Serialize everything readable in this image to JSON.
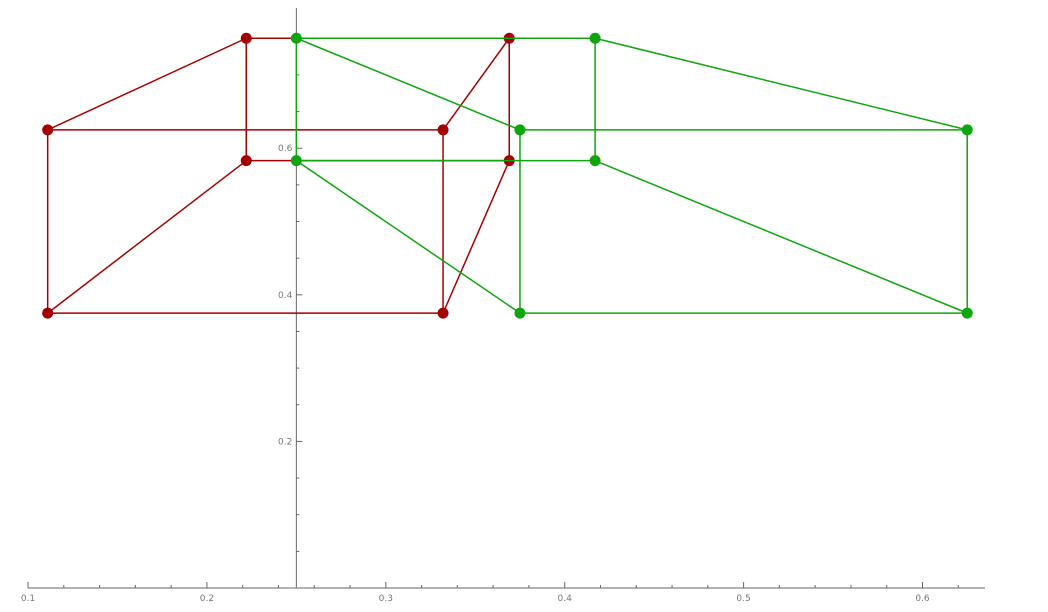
{
  "chart_data": {
    "type": "scatter",
    "title": "",
    "xlabel": "",
    "ylabel": "",
    "xlim": [
      0.1,
      0.635
    ],
    "ylim": [
      0,
      0.75
    ],
    "axes_origin": [
      0.25,
      0
    ],
    "x_ticks": [
      0.1,
      0.2,
      0.3,
      0.4,
      0.5,
      0.6
    ],
    "x_tick_labels": [
      "0.1",
      "0.2",
      "0.3",
      "0.4",
      "0.5",
      "0.6"
    ],
    "y_ticks": [
      0.2,
      0.4,
      0.6
    ],
    "y_tick_labels": [
      "0.2",
      "0.4",
      "0.6"
    ],
    "grid": false,
    "legend": "none",
    "series": [
      {
        "color": "#a50000",
        "points": [
          [
            0.111,
            0.625
          ],
          [
            0.332,
            0.625
          ],
          [
            0.332,
            0.375
          ],
          [
            0.111,
            0.375
          ],
          [
            0.222,
            0.75
          ],
          [
            0.369,
            0.75
          ],
          [
            0.369,
            0.583
          ],
          [
            0.222,
            0.583
          ]
        ],
        "edges": [
          [
            0,
            1
          ],
          [
            1,
            2
          ],
          [
            2,
            3
          ],
          [
            3,
            0
          ],
          [
            4,
            5
          ],
          [
            5,
            6
          ],
          [
            6,
            7
          ],
          [
            7,
            4
          ],
          [
            0,
            4
          ],
          [
            1,
            5
          ],
          [
            2,
            6
          ],
          [
            3,
            7
          ]
        ]
      },
      {
        "color": "#0ea50e",
        "points": [
          [
            0.375,
            0.625
          ],
          [
            0.625,
            0.625
          ],
          [
            0.625,
            0.375
          ],
          [
            0.375,
            0.375
          ],
          [
            0.25,
            0.75
          ],
          [
            0.417,
            0.75
          ],
          [
            0.417,
            0.583
          ],
          [
            0.25,
            0.583
          ]
        ],
        "edges": [
          [
            0,
            1
          ],
          [
            1,
            2
          ],
          [
            2,
            3
          ],
          [
            3,
            0
          ],
          [
            4,
            5
          ],
          [
            5,
            6
          ],
          [
            6,
            7
          ],
          [
            7,
            4
          ],
          [
            0,
            4
          ],
          [
            1,
            5
          ],
          [
            2,
            6
          ],
          [
            3,
            7
          ]
        ]
      }
    ]
  }
}
